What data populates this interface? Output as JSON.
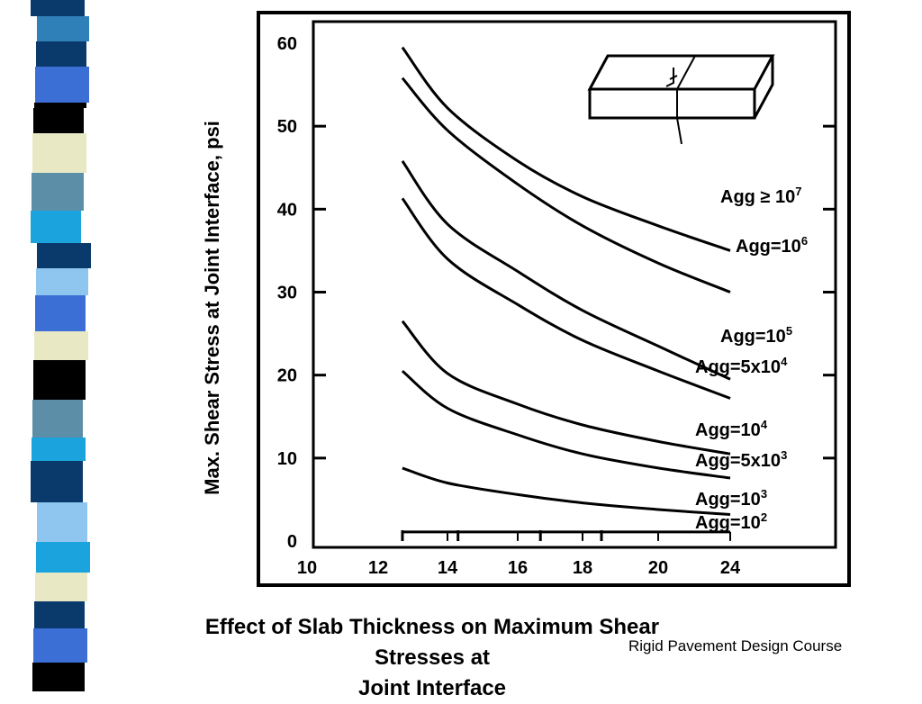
{
  "slide": {
    "caption_line1": "Effect of Slab Thickness on Maximum Shear Stresses at",
    "caption_line2": "Joint Interface",
    "footer": "Rigid Pavement Design Course",
    "stripe_colors": [
      "#0a3a6b",
      "#2f7fb8",
      "#1aa3dc",
      "#5d8ea8",
      "#8ec6f0",
      "#e8e8c4",
      "#000000",
      "#3b6fd6"
    ]
  },
  "chart_data": {
    "type": "line",
    "ylabel": "Max. Shear Stress at Joint Interface, psi",
    "x_ticks": [
      "10",
      "12",
      "14",
      "16",
      "18",
      "20",
      "24"
    ],
    "y_ticks": [
      "0",
      "10",
      "20",
      "30",
      "40",
      "50",
      "60"
    ],
    "ylim": [
      0,
      60
    ],
    "grid": false,
    "series": [
      {
        "name": "Agg ≥ 10",
        "exp": "7",
        "x": [
          12.7,
          14,
          16,
          18,
          20,
          24
        ],
        "y": [
          59.5,
          52.2,
          45.8,
          41.5,
          38.0,
          35.0
        ]
      },
      {
        "name": "Agg=10",
        "exp": "6",
        "x": [
          12.7,
          14,
          16,
          18,
          20,
          24
        ],
        "y": [
          55.8,
          49.5,
          43.0,
          38.0,
          33.5,
          30.0
        ]
      },
      {
        "name": "Agg=10",
        "exp": "5",
        "x": [
          12.7,
          14,
          16,
          18,
          20,
          24
        ],
        "y": [
          45.8,
          38.2,
          32.5,
          27.8,
          23.5,
          19.5
        ]
      },
      {
        "name": "Agg=5x10",
        "exp": "4",
        "x": [
          12.7,
          14,
          16,
          18,
          20,
          24
        ],
        "y": [
          41.3,
          34.0,
          28.5,
          24.2,
          20.5,
          17.2
        ]
      },
      {
        "name": "Agg=10",
        "exp": "4",
        "x": [
          12.7,
          14,
          16,
          18,
          20,
          24
        ],
        "y": [
          26.5,
          20.2,
          16.5,
          14.0,
          12.0,
          10.5
        ]
      },
      {
        "name": "Agg=5x10",
        "exp": "3",
        "x": [
          12.7,
          14,
          16,
          18,
          20,
          24
        ],
        "y": [
          20.5,
          16.0,
          12.8,
          10.5,
          8.8,
          7.6
        ]
      },
      {
        "name": "Agg=10",
        "exp": "3",
        "x": [
          12.7,
          14,
          16,
          18,
          20,
          24
        ],
        "y": [
          8.8,
          7.0,
          5.6,
          4.6,
          3.8,
          3.2
        ]
      },
      {
        "name": "Agg=10",
        "exp": "2",
        "x": [
          12.7,
          14,
          16,
          18,
          20,
          24
        ],
        "y": [
          1.1,
          1.1,
          1.1,
          1.1,
          1.1,
          1.1
        ]
      }
    ]
  }
}
